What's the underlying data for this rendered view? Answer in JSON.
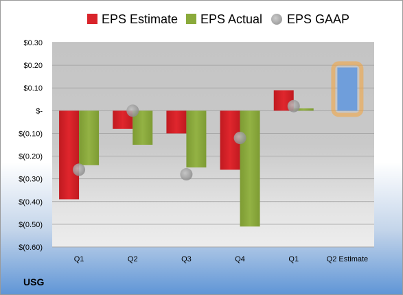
{
  "ticker": "USG",
  "chart_data": {
    "type": "bar",
    "categories": [
      "Q1",
      "Q2",
      "Q3",
      "Q4",
      "Q1",
      "Q2 Estimate"
    ],
    "series": [
      {
        "name": "EPS Estimate",
        "color": "#d9242b",
        "values": [
          -0.39,
          -0.08,
          -0.1,
          -0.26,
          0.09,
          null
        ]
      },
      {
        "name": "EPS Actual",
        "color": "#8aaa3b",
        "values": [
          -0.24,
          -0.15,
          -0.25,
          -0.51,
          0.01,
          null
        ]
      },
      {
        "name": "EPS GAAP",
        "color": "#a9a9a9",
        "marker": "circle",
        "values": [
          -0.26,
          0.0,
          -0.28,
          -0.12,
          0.02,
          null
        ]
      }
    ],
    "highlight": {
      "category": "Q2 Estimate",
      "value": 0.19,
      "color": "#6f9edb",
      "glow": "#f5a43a"
    },
    "ylim": [
      -0.6,
      0.3
    ],
    "yticks": [
      0.3,
      0.2,
      0.1,
      0.0,
      -0.1,
      -0.2,
      -0.3,
      -0.4,
      -0.5,
      -0.6
    ],
    "ytick_labels": [
      "$0.30",
      "$0.20",
      "$0.10",
      "$-",
      "$(0.10)",
      "$(0.20)",
      "$(0.30)",
      "$(0.40)",
      "$(0.50)",
      "$(0.60)"
    ],
    "legend_position": "top",
    "grid": true
  }
}
